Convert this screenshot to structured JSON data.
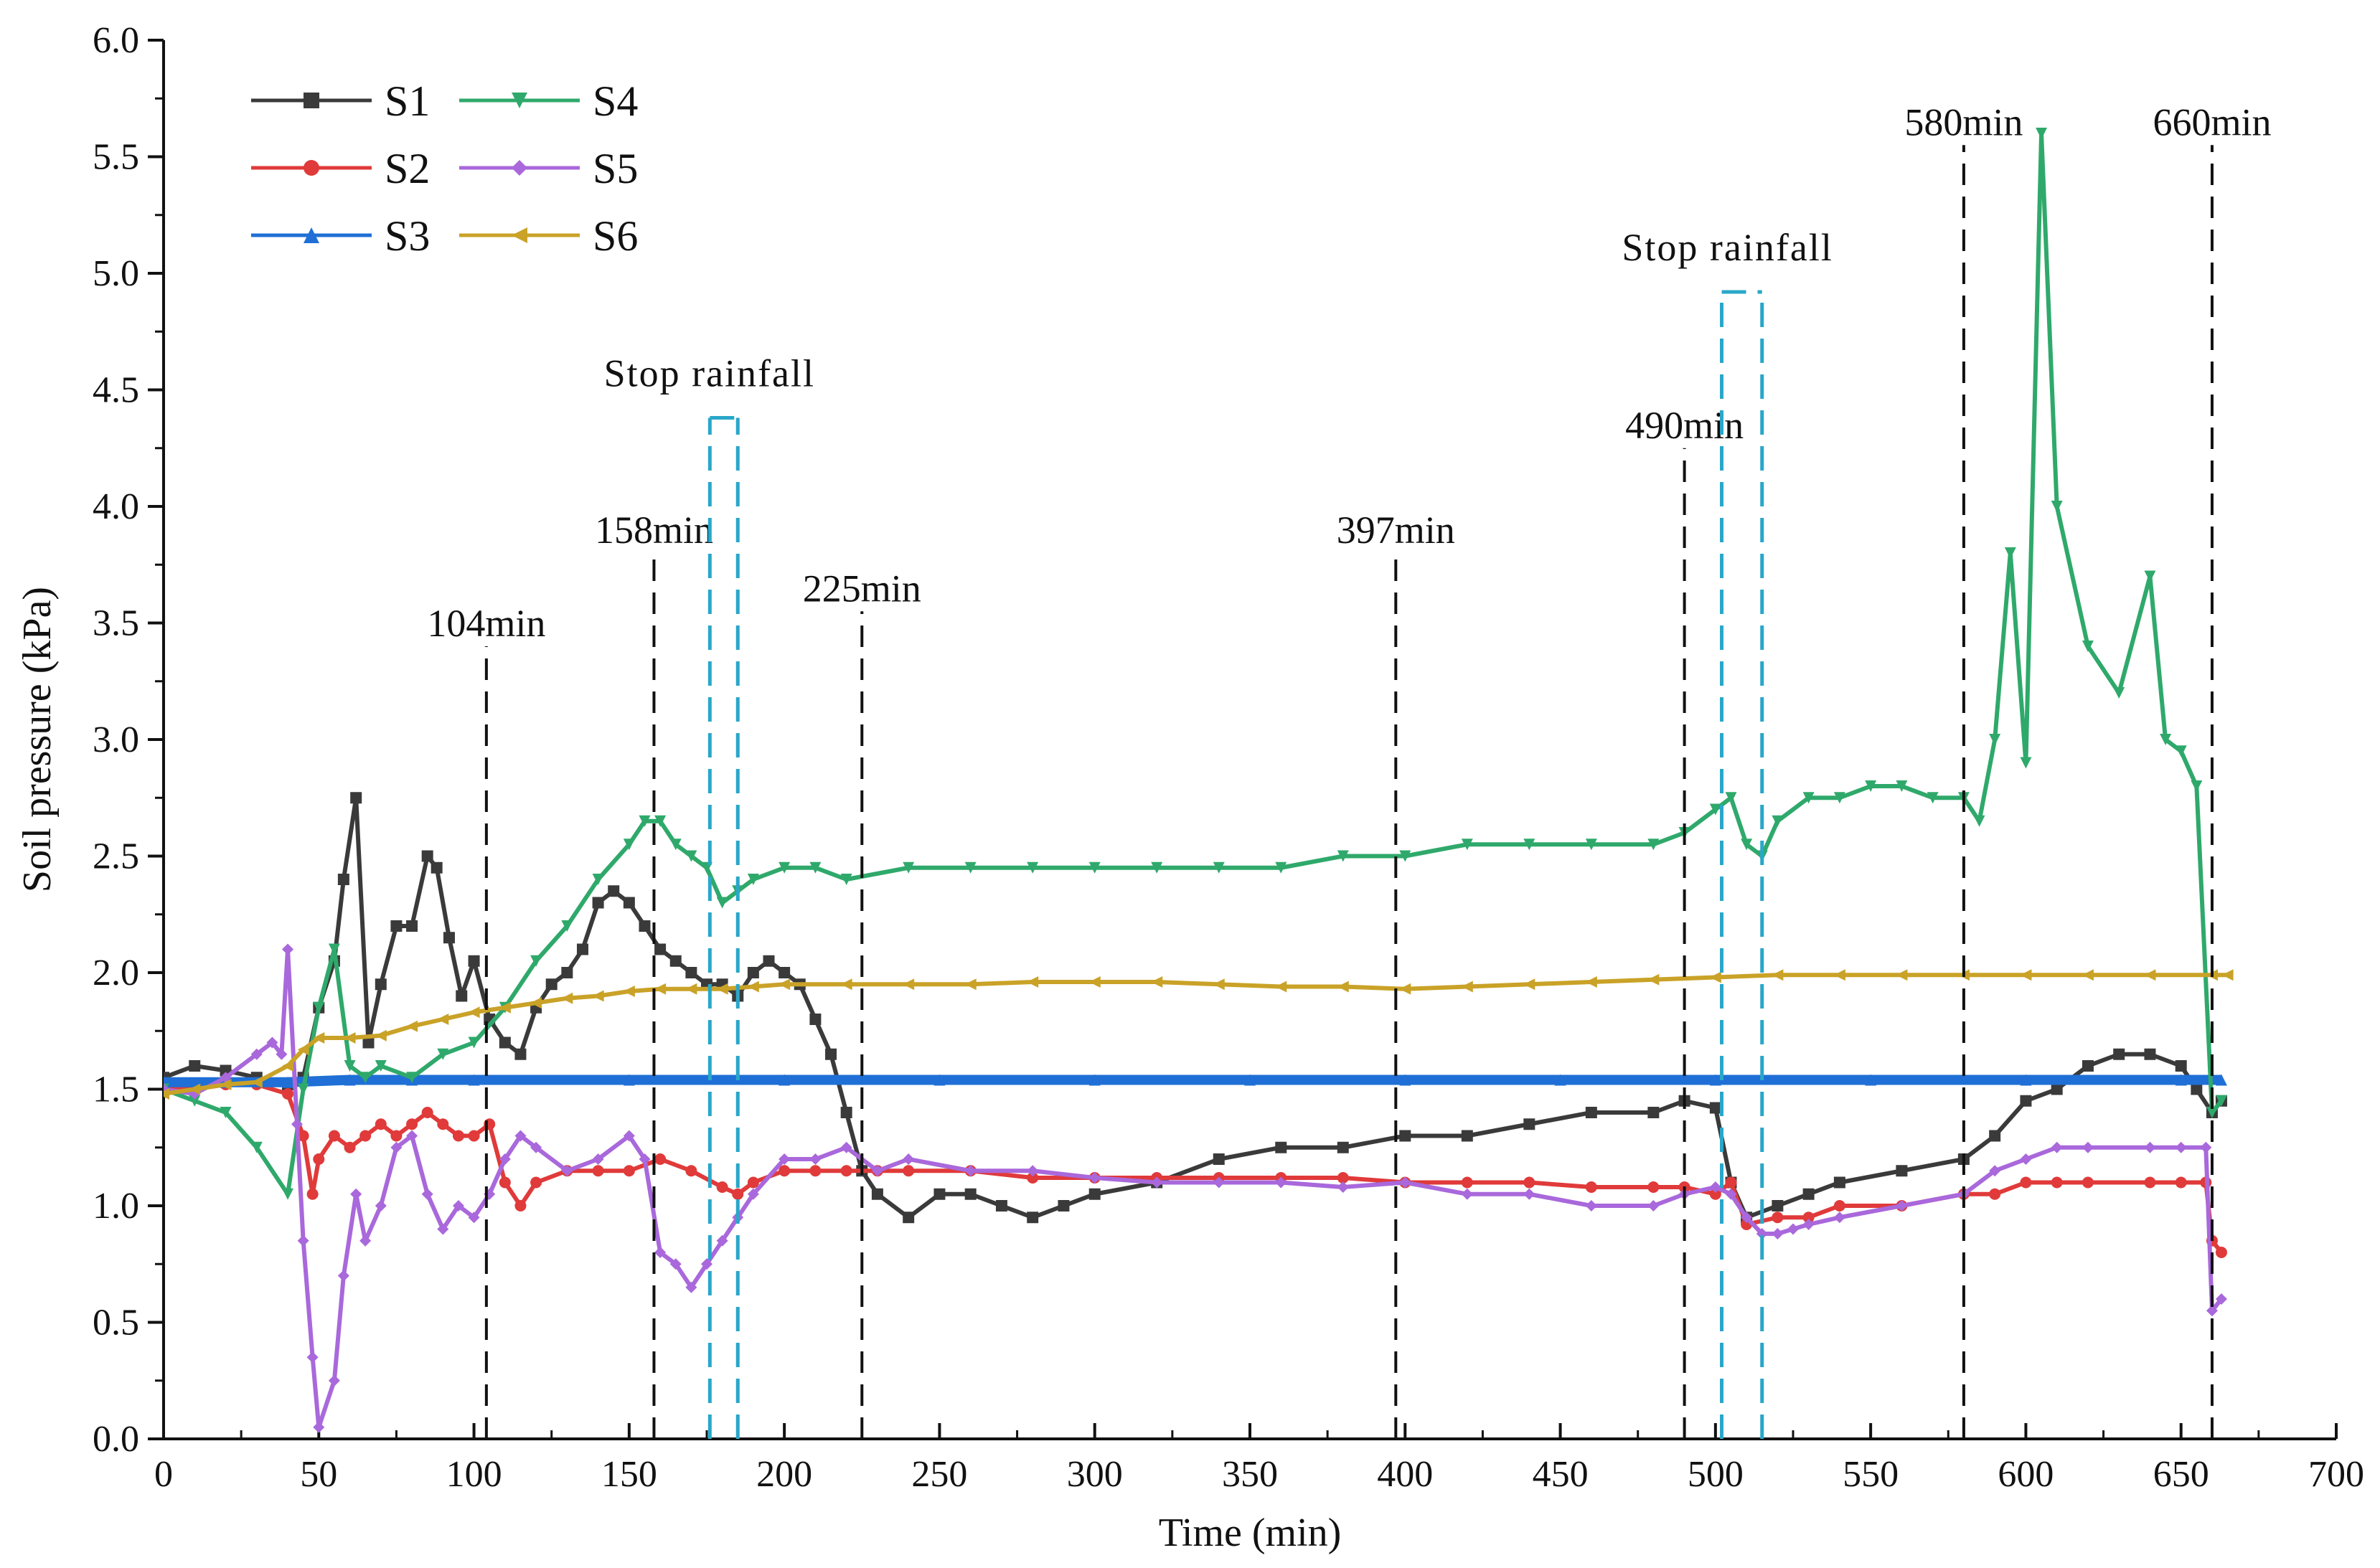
{
  "chart_data": {
    "type": "line",
    "title": "",
    "xlabel": "Time (min)",
    "ylabel": "Soil pressure (kPa)",
    "xlim": [
      0,
      700
    ],
    "ylim": [
      0,
      6
    ],
    "xticks": [
      0,
      50,
      100,
      150,
      200,
      250,
      300,
      350,
      400,
      450,
      500,
      550,
      600,
      650,
      700
    ],
    "yticks": [
      "0.0",
      "0.5",
      "1.0",
      "1.5",
      "2.0",
      "2.5",
      "3.0",
      "3.5",
      "4.0",
      "4.5",
      "5.0",
      "5.5",
      "6.0"
    ],
    "legend_position": "top-left",
    "grid": false,
    "series": [
      {
        "name": "S1",
        "color": "#3a3a3a",
        "marker": "square",
        "x": [
          0,
          10,
          20,
          30,
          40,
          45,
          50,
          55,
          58,
          62,
          66,
          70,
          75,
          80,
          85,
          88,
          92,
          96,
          100,
          105,
          110,
          115,
          120,
          125,
          130,
          135,
          140,
          145,
          150,
          155,
          160,
          165,
          170,
          175,
          180,
          185,
          190,
          195,
          200,
          205,
          210,
          215,
          220,
          225,
          230,
          240,
          250,
          260,
          270,
          280,
          290,
          300,
          320,
          340,
          360,
          380,
          400,
          420,
          440,
          460,
          480,
          490,
          500,
          505,
          510,
          520,
          530,
          540,
          560,
          580,
          590,
          600,
          610,
          620,
          630,
          640,
          650,
          655,
          660,
          663
        ],
        "y": [
          1.55,
          1.6,
          1.58,
          1.55,
          1.52,
          1.55,
          1.85,
          2.05,
          2.4,
          2.75,
          1.7,
          1.95,
          2.2,
          2.2,
          2.5,
          2.45,
          2.15,
          1.9,
          2.05,
          1.8,
          1.7,
          1.65,
          1.85,
          1.95,
          2.0,
          2.1,
          2.3,
          2.35,
          2.3,
          2.2,
          2.1,
          2.05,
          2.0,
          1.95,
          1.95,
          1.9,
          2.0,
          2.05,
          2.0,
          1.95,
          1.8,
          1.65,
          1.4,
          1.15,
          1.05,
          0.95,
          1.05,
          1.05,
          1.0,
          0.95,
          1.0,
          1.05,
          1.1,
          1.2,
          1.25,
          1.25,
          1.3,
          1.3,
          1.35,
          1.4,
          1.4,
          1.45,
          1.42,
          1.1,
          0.95,
          1.0,
          1.05,
          1.1,
          1.15,
          1.2,
          1.3,
          1.45,
          1.5,
          1.6,
          1.65,
          1.65,
          1.6,
          1.5,
          1.4,
          1.45
        ]
      },
      {
        "name": "S2",
        "color": "#e03a3a",
        "marker": "circle",
        "x": [
          0,
          10,
          20,
          30,
          40,
          45,
          48,
          50,
          55,
          60,
          65,
          70,
          75,
          80,
          85,
          90,
          95,
          100,
          105,
          110,
          115,
          120,
          130,
          140,
          150,
          160,
          170,
          180,
          185,
          190,
          200,
          210,
          220,
          230,
          240,
          260,
          280,
          300,
          320,
          340,
          360,
          380,
          400,
          420,
          440,
          460,
          480,
          490,
          500,
          505,
          510,
          520,
          530,
          540,
          560,
          580,
          590,
          600,
          610,
          620,
          640,
          650,
          658,
          660,
          663
        ],
        "y": [
          1.5,
          1.5,
          1.52,
          1.52,
          1.48,
          1.3,
          1.05,
          1.2,
          1.3,
          1.25,
          1.3,
          1.35,
          1.3,
          1.35,
          1.4,
          1.35,
          1.3,
          1.3,
          1.35,
          1.1,
          1.0,
          1.1,
          1.15,
          1.15,
          1.15,
          1.2,
          1.15,
          1.08,
          1.05,
          1.1,
          1.15,
          1.15,
          1.15,
          1.15,
          1.15,
          1.15,
          1.12,
          1.12,
          1.12,
          1.12,
          1.12,
          1.12,
          1.1,
          1.1,
          1.1,
          1.08,
          1.08,
          1.08,
          1.05,
          1.1,
          0.92,
          0.95,
          0.95,
          1.0,
          1.0,
          1.05,
          1.05,
          1.1,
          1.1,
          1.1,
          1.1,
          1.1,
          1.1,
          0.85,
          0.8
        ]
      },
      {
        "name": "S3",
        "color": "#1f6fd6",
        "marker": "triangle-up",
        "x": [
          0,
          20,
          40,
          60,
          80,
          100,
          150,
          200,
          250,
          300,
          350,
          400,
          450,
          500,
          550,
          600,
          650,
          663
        ],
        "y": [
          1.53,
          1.53,
          1.53,
          1.54,
          1.54,
          1.54,
          1.54,
          1.54,
          1.54,
          1.54,
          1.54,
          1.54,
          1.54,
          1.54,
          1.54,
          1.54,
          1.54,
          1.54
        ]
      },
      {
        "name": "S4",
        "color": "#2fa96b",
        "marker": "triangle-down",
        "x": [
          0,
          10,
          20,
          30,
          40,
          45,
          50,
          55,
          60,
          65,
          70,
          80,
          90,
          100,
          110,
          120,
          130,
          140,
          150,
          155,
          160,
          165,
          170,
          175,
          180,
          185,
          190,
          200,
          210,
          220,
          240,
          260,
          280,
          300,
          320,
          340,
          360,
          380,
          400,
          420,
          440,
          460,
          480,
          490,
          500,
          505,
          510,
          515,
          520,
          530,
          540,
          550,
          560,
          570,
          580,
          585,
          590,
          595,
          600,
          605,
          610,
          620,
          630,
          640,
          645,
          650,
          655,
          660,
          663
        ],
        "y": [
          1.5,
          1.45,
          1.4,
          1.25,
          1.05,
          1.5,
          1.85,
          2.1,
          1.6,
          1.55,
          1.6,
          1.55,
          1.65,
          1.7,
          1.85,
          2.05,
          2.2,
          2.4,
          2.55,
          2.65,
          2.65,
          2.55,
          2.5,
          2.45,
          2.3,
          2.35,
          2.4,
          2.45,
          2.45,
          2.4,
          2.45,
          2.45,
          2.45,
          2.45,
          2.45,
          2.45,
          2.45,
          2.5,
          2.5,
          2.55,
          2.55,
          2.55,
          2.55,
          2.6,
          2.7,
          2.75,
          2.55,
          2.5,
          2.65,
          2.75,
          2.75,
          2.8,
          2.8,
          2.75,
          2.75,
          2.65,
          3.0,
          3.8,
          2.9,
          5.6,
          4.0,
          3.4,
          3.2,
          3.7,
          3.0,
          2.95,
          2.8,
          1.4,
          1.45
        ]
      },
      {
        "name": "S5",
        "color": "#a968db",
        "marker": "diamond",
        "x": [
          0,
          10,
          20,
          30,
          35,
          38,
          40,
          43,
          45,
          48,
          50,
          55,
          58,
          62,
          65,
          70,
          75,
          80,
          85,
          90,
          95,
          100,
          105,
          110,
          115,
          120,
          130,
          140,
          150,
          155,
          160,
          165,
          170,
          175,
          180,
          185,
          190,
          200,
          210,
          220,
          230,
          240,
          260,
          280,
          300,
          320,
          340,
          360,
          380,
          400,
          420,
          440,
          460,
          480,
          490,
          500,
          505,
          510,
          515,
          520,
          525,
          530,
          540,
          560,
          580,
          590,
          600,
          610,
          620,
          640,
          650,
          658,
          660,
          663
        ],
        "y": [
          1.5,
          1.48,
          1.55,
          1.65,
          1.7,
          1.65,
          2.1,
          1.35,
          0.85,
          0.35,
          0.05,
          0.25,
          0.7,
          1.05,
          0.85,
          1.0,
          1.25,
          1.3,
          1.05,
          0.9,
          1.0,
          0.95,
          1.05,
          1.2,
          1.3,
          1.25,
          1.15,
          1.2,
          1.3,
          1.2,
          0.8,
          0.75,
          0.65,
          0.75,
          0.85,
          0.95,
          1.05,
          1.2,
          1.2,
          1.25,
          1.15,
          1.2,
          1.15,
          1.15,
          1.12,
          1.1,
          1.1,
          1.1,
          1.08,
          1.1,
          1.05,
          1.05,
          1.0,
          1.0,
          1.05,
          1.08,
          1.05,
          0.95,
          0.88,
          0.88,
          0.9,
          0.92,
          0.95,
          1.0,
          1.05,
          1.15,
          1.2,
          1.25,
          1.25,
          1.25,
          1.25,
          1.25,
          0.55,
          0.6
        ]
      },
      {
        "name": "S6",
        "color": "#c9a227",
        "marker": "triangle-left",
        "x": [
          0,
          10,
          20,
          30,
          40,
          45,
          50,
          60,
          70,
          80,
          90,
          100,
          110,
          120,
          130,
          140,
          150,
          160,
          170,
          180,
          190,
          200,
          220,
          240,
          260,
          280,
          300,
          320,
          340,
          360,
          380,
          400,
          420,
          440,
          460,
          480,
          500,
          520,
          540,
          560,
          580,
          600,
          620,
          640,
          660,
          665
        ],
        "y": [
          1.48,
          1.5,
          1.52,
          1.53,
          1.6,
          1.67,
          1.72,
          1.72,
          1.73,
          1.77,
          1.8,
          1.83,
          1.85,
          1.87,
          1.89,
          1.9,
          1.92,
          1.93,
          1.93,
          1.93,
          1.94,
          1.95,
          1.95,
          1.95,
          1.95,
          1.96,
          1.96,
          1.96,
          1.95,
          1.94,
          1.94,
          1.93,
          1.94,
          1.95,
          1.96,
          1.97,
          1.98,
          1.99,
          1.99,
          1.99,
          1.99,
          1.99,
          1.99,
          1.99,
          1.99,
          1.99
        ]
      }
    ],
    "vertical_markers": [
      {
        "x": 104,
        "label": "104min",
        "top": 3.4
      },
      {
        "x": 158,
        "label": "158min",
        "top": 3.8
      },
      {
        "x": 225,
        "label": "225min",
        "top": 3.55
      },
      {
        "x": 397,
        "label": "397min",
        "top": 3.8
      },
      {
        "x": 490,
        "label": "490min",
        "top": 4.25
      },
      {
        "x": 580,
        "label": "580min",
        "top": 5.55
      },
      {
        "x": 660,
        "label": "660min",
        "top": 5.55
      }
    ],
    "rainfall_stops": [
      {
        "x_start": 176,
        "x_end": 185,
        "top": 4.38,
        "label": "Stop rainfall"
      },
      {
        "x_start": 502,
        "x_end": 515,
        "top": 4.92,
        "label": "Stop rainfall"
      }
    ]
  }
}
